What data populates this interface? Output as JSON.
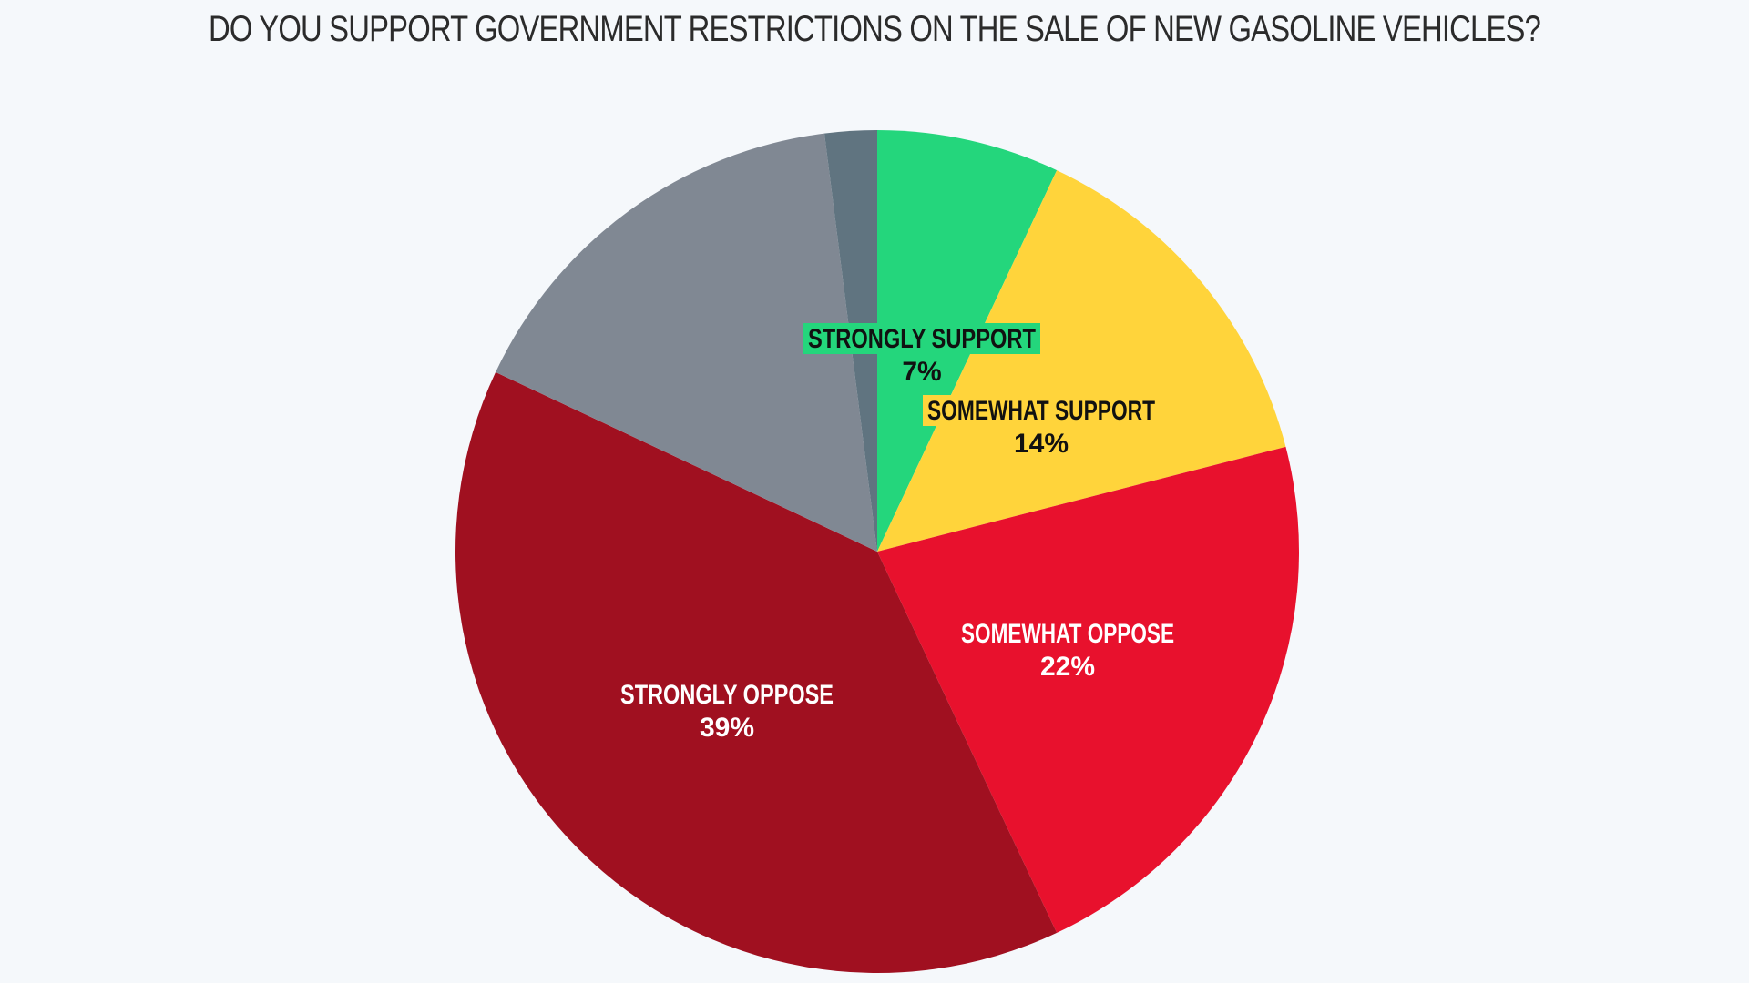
{
  "chart_data": {
    "type": "pie",
    "title": "DO YOU SUPPORT GOVERNMENT RESTRICTIONS ON THE SALE OF NEW GASOLINE VEHICLES?",
    "start_angle_deg": 0,
    "direction": "clockwise",
    "slices": [
      {
        "label": "STRONGLY SUPPORT",
        "value": 7,
        "value_label": "7%",
        "color": "#24d67c",
        "label_color": "#111111",
        "highlight": "#24d67c"
      },
      {
        "label": "SOMEWHAT SUPPORT",
        "value": 14,
        "value_label": "14%",
        "color": "#ffd43b",
        "label_color": "#111111",
        "highlight": "#ffd43b"
      },
      {
        "label": "SOMEWHAT OPPOSE",
        "value": 22,
        "value_label": "22%",
        "color": "#e8112d",
        "label_color": "#ffffff",
        "highlight": null
      },
      {
        "label": "STRONGLY OPPOSE",
        "value": 39,
        "value_label": "39%",
        "color": "#a01020",
        "label_color": "#ffffff",
        "highlight": null
      },
      {
        "label": "",
        "value": 16,
        "value_label": "",
        "color": "#808893",
        "label_color": "#ffffff",
        "highlight": null
      },
      {
        "label": "",
        "value": 2,
        "value_label": "",
        "color": "#607480",
        "label_color": "#ffffff",
        "highlight": null
      }
    ]
  }
}
